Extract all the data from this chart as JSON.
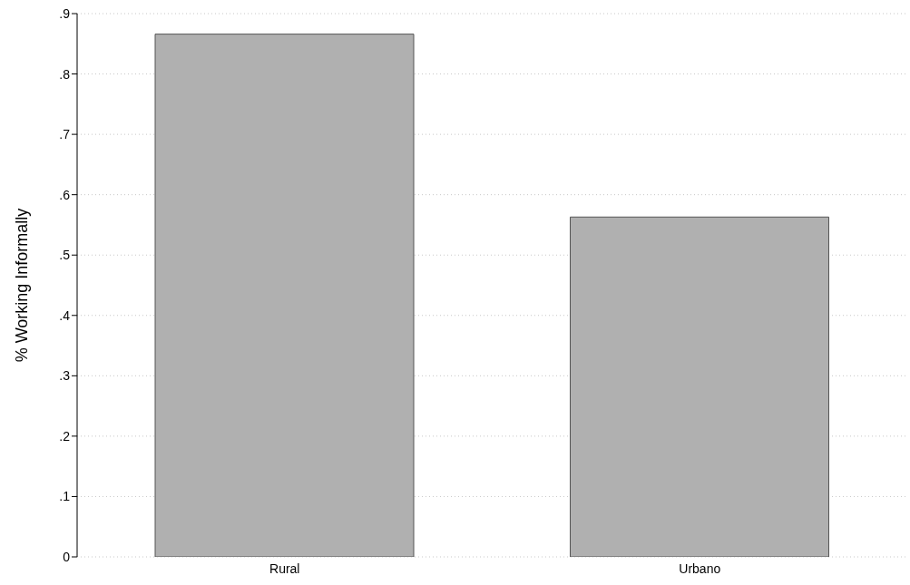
{
  "chart_data": {
    "type": "bar",
    "ylabel": "% Working Informally",
    "categories": [
      "Rural",
      "Urbano"
    ],
    "values": [
      0.866,
      0.563
    ],
    "color": "#b0b0b0",
    "ylim": [
      0,
      0.9
    ],
    "yticks": [
      {
        "value": 0,
        "label": "0"
      },
      {
        "value": 0.1,
        "label": ".1"
      },
      {
        "value": 0.2,
        "label": ".2"
      },
      {
        "value": 0.3,
        "label": ".3"
      },
      {
        "value": 0.4,
        "label": ".4"
      },
      {
        "value": 0.5,
        "label": ".5"
      },
      {
        "value": 0.6,
        "label": ".6"
      },
      {
        "value": 0.7,
        "label": ".7"
      },
      {
        "value": 0.8,
        "label": ".8"
      },
      {
        "value": 0.9,
        "label": ".9"
      }
    ],
    "grid": "y",
    "legend": false
  }
}
